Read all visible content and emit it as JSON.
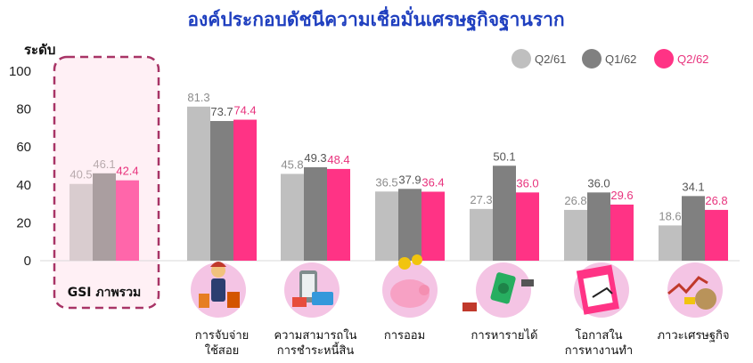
{
  "chart_data": {
    "type": "bar",
    "title": "องค์ประกอบดัชนีความเชื่อมั่นเศรษฐกิจฐานราก",
    "ylabel": "ระดับ",
    "ylim": [
      0,
      100
    ],
    "yticks": [
      0,
      20,
      40,
      60,
      80,
      100
    ],
    "grid": false,
    "legend_position": "top-right",
    "categories": [
      "GSI ภาพรวม",
      "การจับจ่ายใช้สอย",
      "ความสามารถในการชำระหนี้สิน",
      "การออม",
      "การหารายได้",
      "โอกาสในการหางานทำ",
      "ภาวะเศรษฐกิจ"
    ],
    "series": [
      {
        "name": "Q2/61",
        "values": [
          40.5,
          81.3,
          45.8,
          36.5,
          27.3,
          26.8,
          18.6
        ]
      },
      {
        "name": "Q1/62",
        "values": [
          46.1,
          73.7,
          49.3,
          37.9,
          50.1,
          36.0,
          34.1
        ]
      },
      {
        "name": "Q2/62",
        "values": [
          42.4,
          74.4,
          48.4,
          36.4,
          36.0,
          29.6,
          26.8
        ]
      }
    ]
  },
  "colors": {
    "series": [
      "#bfbfbf",
      "#808080",
      "#ff3385"
    ],
    "gsi_series": [
      "#d9cccf",
      "#aa9ea0",
      "#ff66aa"
    ],
    "labels": [
      "#8c8c8c",
      "#555555",
      "#e8337d"
    ],
    "gsi_box": "#a83466",
    "gsi_fill": "#fff0f5",
    "icon_circle": "#f4c4e4"
  },
  "icons": [
    "shopping-woman-icon",
    "phone-card-payment-icon",
    "piggy-bank-icon",
    "money-exchange-icon",
    "job-ad-icon",
    "economy-growth-icon"
  ]
}
